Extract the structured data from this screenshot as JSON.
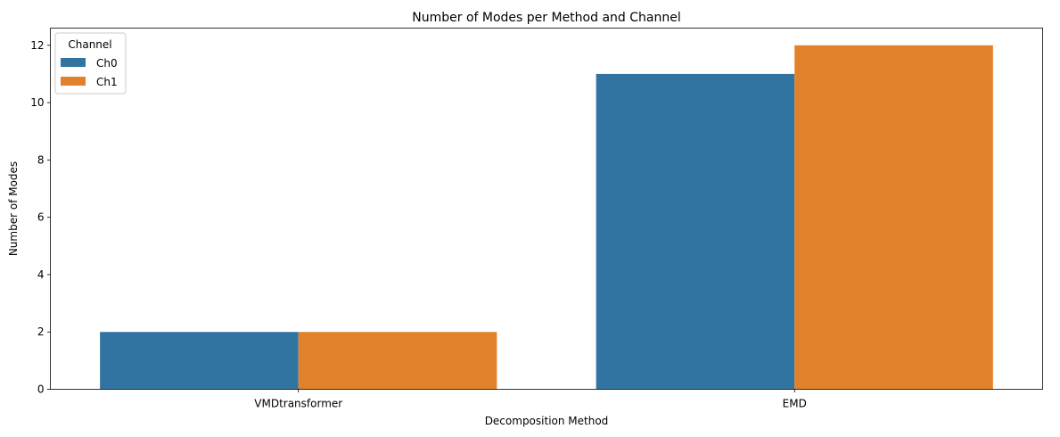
{
  "chart_data": {
    "type": "bar",
    "title": "Number of Modes per Method and Channel",
    "xlabel": "Decomposition Method",
    "ylabel": "Number of Modes",
    "categories": [
      "VMDtransformer",
      "EMD"
    ],
    "series": [
      {
        "name": "Ch0",
        "values": [
          2,
          11
        ],
        "color": "#3274a1"
      },
      {
        "name": "Ch1",
        "values": [
          2,
          12
        ],
        "color": "#e1812c"
      }
    ],
    "ylim": [
      0,
      12.6
    ],
    "yticks": [
      "0",
      "2",
      "4",
      "6",
      "8",
      "10",
      "12"
    ],
    "grid": false,
    "legend": {
      "title": "Channel",
      "placement": "top-left"
    }
  }
}
